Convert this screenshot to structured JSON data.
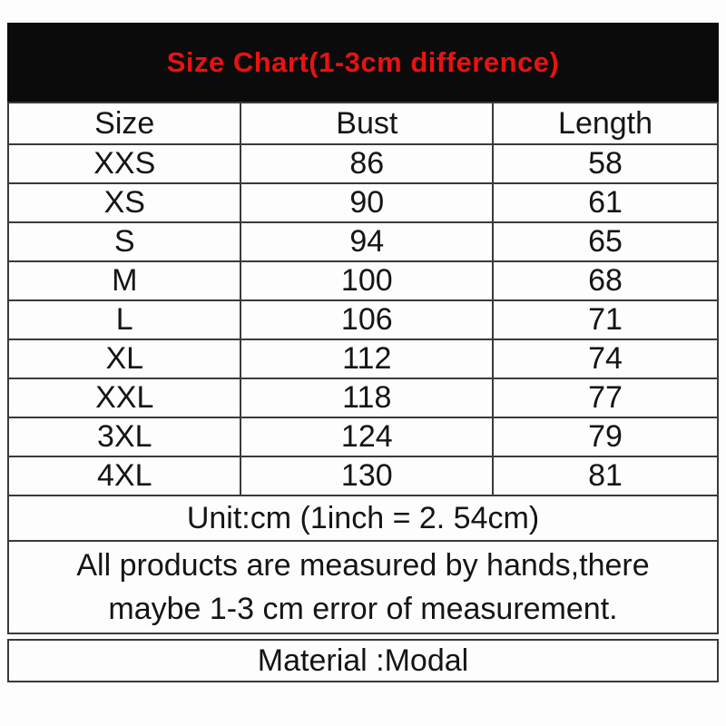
{
  "colors": {
    "title_bar_bg": "#0b0b0b",
    "title_text": "#e81212",
    "table_border": "#3a3a3a",
    "page_bg": "#fdfdfd"
  },
  "chart_data": {
    "type": "table",
    "title": "Size Chart(1-3cm difference)",
    "columns": [
      "Size",
      "Bust",
      "Length"
    ],
    "rows": [
      [
        "XXS",
        "86",
        "58"
      ],
      [
        "XS",
        "90",
        "61"
      ],
      [
        "S",
        "94",
        "65"
      ],
      [
        "M",
        "100",
        "68"
      ],
      [
        "L",
        "106",
        "71"
      ],
      [
        "XL",
        "112",
        "74"
      ],
      [
        "XXL",
        "118",
        "77"
      ],
      [
        "3XL",
        "124",
        "79"
      ],
      [
        "4XL",
        "130",
        "81"
      ]
    ],
    "unit_note": "Unit:cm (1inch = 2. 54cm)",
    "note_lines": [
      "All products are measured by hands,there",
      "maybe 1-3 cm error of measurement."
    ],
    "material": "Material :Modal"
  }
}
